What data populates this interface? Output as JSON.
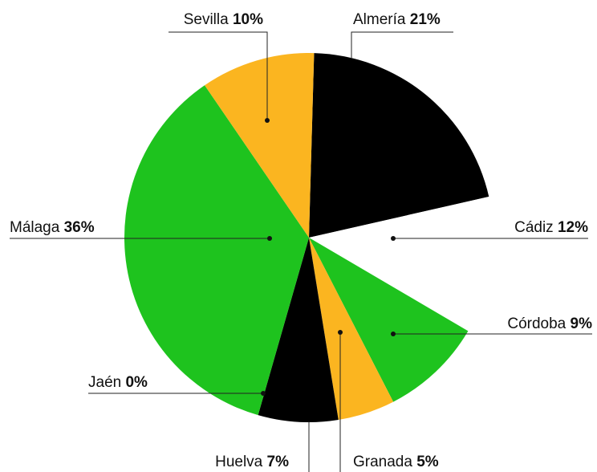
{
  "chart_data": {
    "type": "pie",
    "categories": [
      "Almería",
      "Cádiz",
      "Córdoba",
      "Granada",
      "Huelva",
      "Jaén",
      "Málaga",
      "Sevilla"
    ],
    "values": [
      21,
      12,
      9,
      5,
      7,
      0,
      36,
      10
    ],
    "value_labels": [
      "21%",
      "12%",
      "9%",
      "5%",
      "7%",
      "0%",
      "36%",
      "10%"
    ],
    "colors": [
      "#000000",
      "#ffffff",
      "#1ec31e",
      "#fbb520",
      "#000000",
      "#ffffff",
      "#1ec31e",
      "#fbb520"
    ]
  }
}
